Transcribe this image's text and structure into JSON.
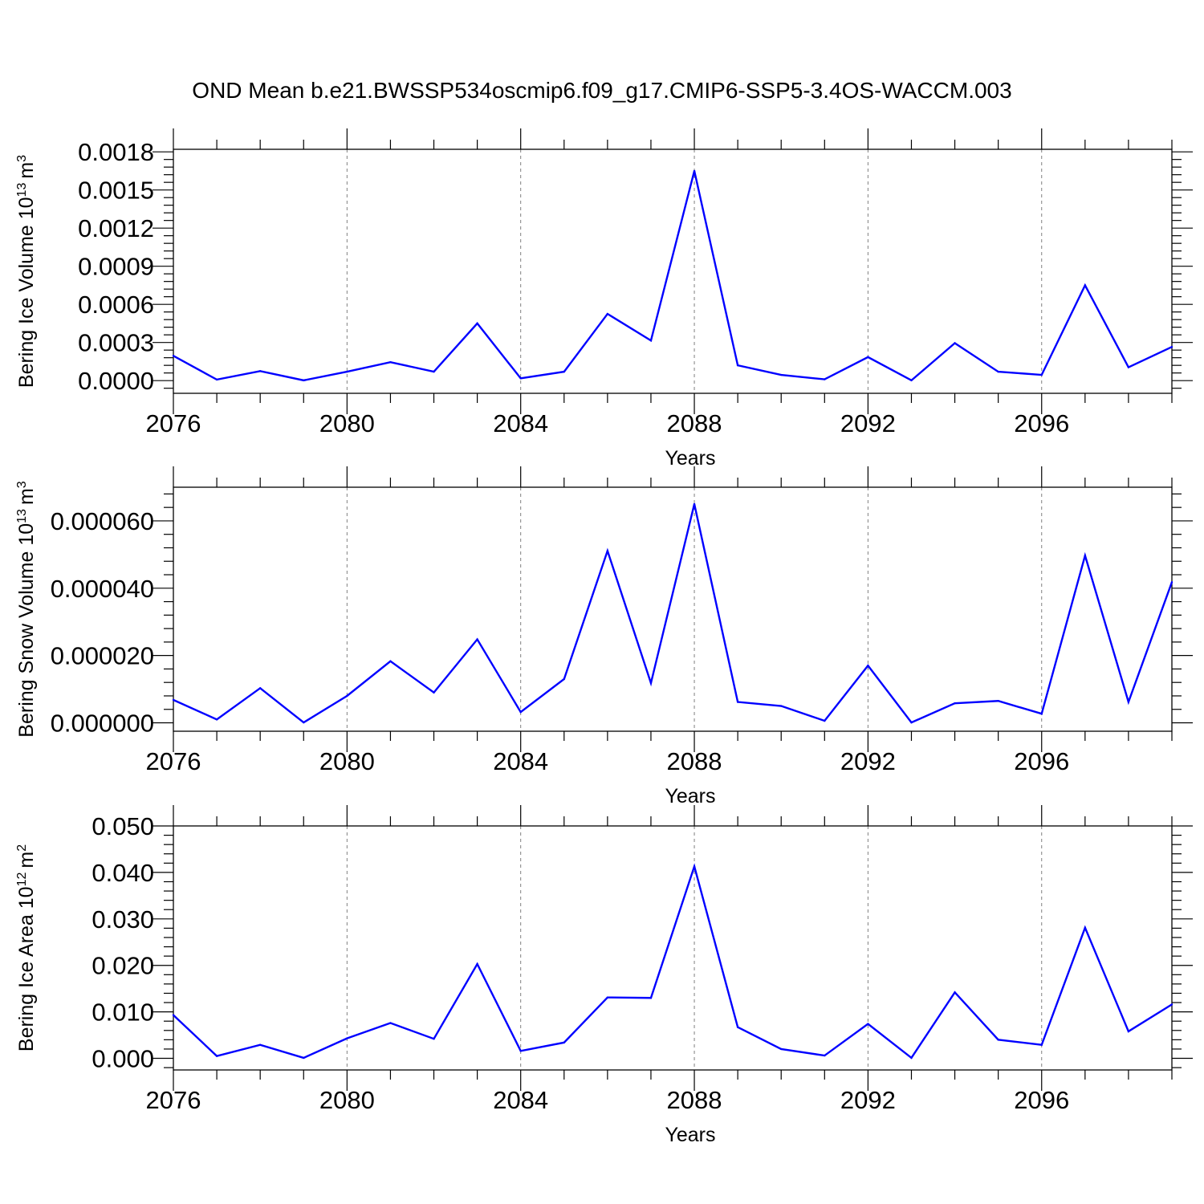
{
  "title": "OND Mean b.e21.BWSSP534oscmip6.f09_g17.CMIP6-SSP5-3.4OS-WACCM.003",
  "chart_data": [
    {
      "type": "line",
      "xlabel": "Years",
      "ylabel": "Bering Ice Volume 10",
      "ylabel_sup": "13",
      "ylabel_unit": "m",
      "ylabel_unit_sup": "3",
      "xlim": [
        2076,
        2099
      ],
      "ylim": [
        -0.0001,
        0.00182
      ],
      "xticks": [
        "2076",
        "2080",
        "2084",
        "2088",
        "2092",
        "2096"
      ],
      "yticks": [
        "0.0000",
        "0.0003",
        "0.0006",
        "0.0009",
        "0.0012",
        "0.0015",
        "0.0018"
      ],
      "grid_x": true,
      "color": "#0000ff",
      "x": [
        2076,
        2077,
        2078,
        2079,
        2080,
        2081,
        2082,
        2083,
        2084,
        2085,
        2086,
        2087,
        2088,
        2089,
        2090,
        2091,
        2092,
        2093,
        2094,
        2095,
        2096,
        2097,
        2098,
        2099
      ],
      "values": [
        0.000195,
        8e-06,
        7.5e-05,
        2e-06,
        7e-05,
        0.000145,
        7e-05,
        0.00045,
        1.8e-05,
        7e-05,
        0.000525,
        0.000315,
        0.00165,
        0.00012,
        4.5e-05,
        1e-05,
        0.000185,
        2e-06,
        0.000295,
        7e-05,
        4.5e-05,
        0.00075,
        0.000105,
        0.000265
      ]
    },
    {
      "type": "line",
      "xlabel": "Years",
      "ylabel": "Bering Snow Volume 10",
      "ylabel_sup": "13",
      "ylabel_unit": "m",
      "ylabel_unit_sup": "3",
      "xlim": [
        2076,
        2099
      ],
      "ylim": [
        -2.5e-06,
        7e-05
      ],
      "xticks": [
        "2076",
        "2080",
        "2084",
        "2088",
        "2092",
        "2096"
      ],
      "yticks": [
        "0.000000",
        "0.000020",
        "0.000040",
        "0.000060"
      ],
      "grid_x": true,
      "color": "#0000ff",
      "x": [
        2076,
        2077,
        2078,
        2079,
        2080,
        2081,
        2082,
        2083,
        2084,
        2085,
        2086,
        2087,
        2088,
        2089,
        2090,
        2091,
        2092,
        2093,
        2094,
        2095,
        2096,
        2097,
        2098,
        2099
      ],
      "values": [
        6.8e-06,
        1e-06,
        1.03e-05,
        1e-07,
        8e-06,
        1.83e-05,
        9e-06,
        2.48e-05,
        3.2e-06,
        1.3e-05,
        5.11e-05,
        1.18e-05,
        6.5e-05,
        6.2e-06,
        5e-06,
        6e-07,
        1.7e-05,
        1e-07,
        5.8e-06,
        6.5e-06,
        2.7e-06,
        4.97e-05,
        6.2e-06,
        4.18e-05
      ]
    },
    {
      "type": "line",
      "xlabel": "Years",
      "ylabel": "Bering Ice Area 10",
      "ylabel_sup": "12",
      "ylabel_unit": "m",
      "ylabel_unit_sup": "2",
      "xlim": [
        2076,
        2099
      ],
      "ylim": [
        -0.0025,
        0.05
      ],
      "xticks": [
        "2076",
        "2080",
        "2084",
        "2088",
        "2092",
        "2096"
      ],
      "yticks": [
        "0.000",
        "0.010",
        "0.020",
        "0.030",
        "0.040",
        "0.050"
      ],
      "grid_x": true,
      "color": "#0000ff",
      "x": [
        2076,
        2077,
        2078,
        2079,
        2080,
        2081,
        2082,
        2083,
        2084,
        2085,
        2086,
        2087,
        2088,
        2089,
        2090,
        2091,
        2092,
        2093,
        2094,
        2095,
        2096,
        2097,
        2098,
        2099
      ],
      "values": [
        0.0093,
        0.0005,
        0.0029,
        0.0001,
        0.0043,
        0.0076,
        0.0042,
        0.0203,
        0.0016,
        0.0034,
        0.0131,
        0.013,
        0.0413,
        0.0067,
        0.002,
        0.0006,
        0.0074,
        0.0001,
        0.0142,
        0.004,
        0.0029,
        0.0281,
        0.0058,
        0.0116
      ]
    }
  ]
}
